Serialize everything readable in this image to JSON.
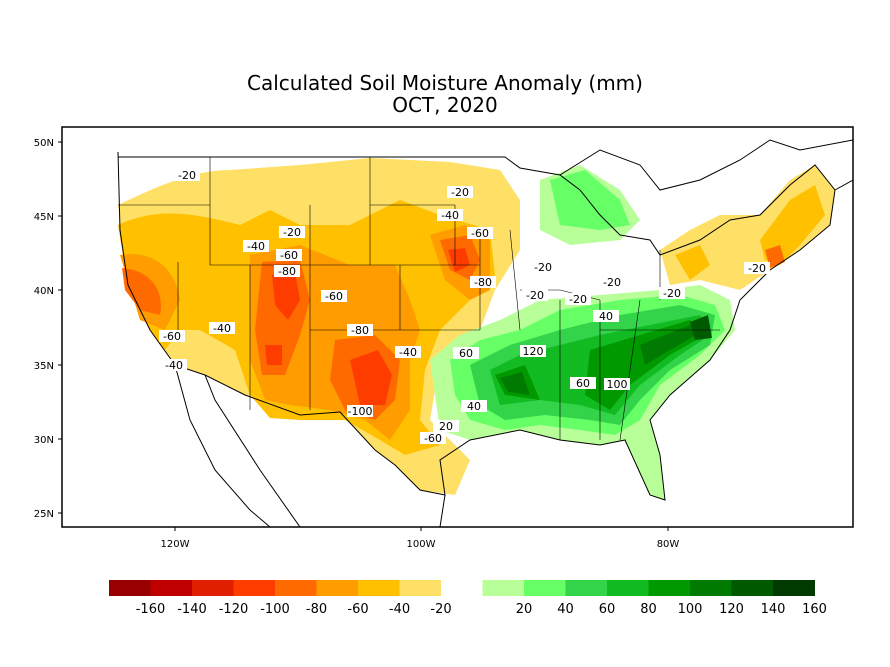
{
  "title": "Calculated Soil Moisture Anomaly (mm)",
  "subtitle": "OCT, 2020",
  "map": {
    "lat_ticks": [
      "50N",
      "45N",
      "40N",
      "35N",
      "30N",
      "25N"
    ],
    "lon_ticks": [
      "120W",
      "100W",
      "80W"
    ],
    "contour_labels": [
      "-20",
      "-40",
      "-20",
      "-60",
      "-80",
      "-60",
      "-40",
      "-80",
      "-40",
      "-100",
      "-60",
      "-20",
      "-40",
      "-60",
      "-80",
      "-20",
      "-20",
      "-20",
      "-20",
      "-20",
      "-20",
      "40",
      "60",
      "120",
      "60",
      "100",
      "40",
      "20",
      "-60",
      "-40"
    ]
  },
  "legend": {
    "colors": [
      "#990000",
      "#c00000",
      "#e01e00",
      "#ff3c00",
      "#ff6a00",
      "#ff9c00",
      "#ffc000",
      "#ffe066",
      "#ffffff",
      "#b8ff99",
      "#66ff66",
      "#33d34a",
      "#12bb22",
      "#009a00",
      "#007a00",
      "#005a00",
      "#003a00"
    ],
    "labels": [
      "-160",
      "-140",
      "-120",
      "-100",
      "-80",
      "-60",
      "-40",
      "-20",
      "20",
      "40",
      "60",
      "80",
      "100",
      "120",
      "140",
      "160"
    ]
  }
}
